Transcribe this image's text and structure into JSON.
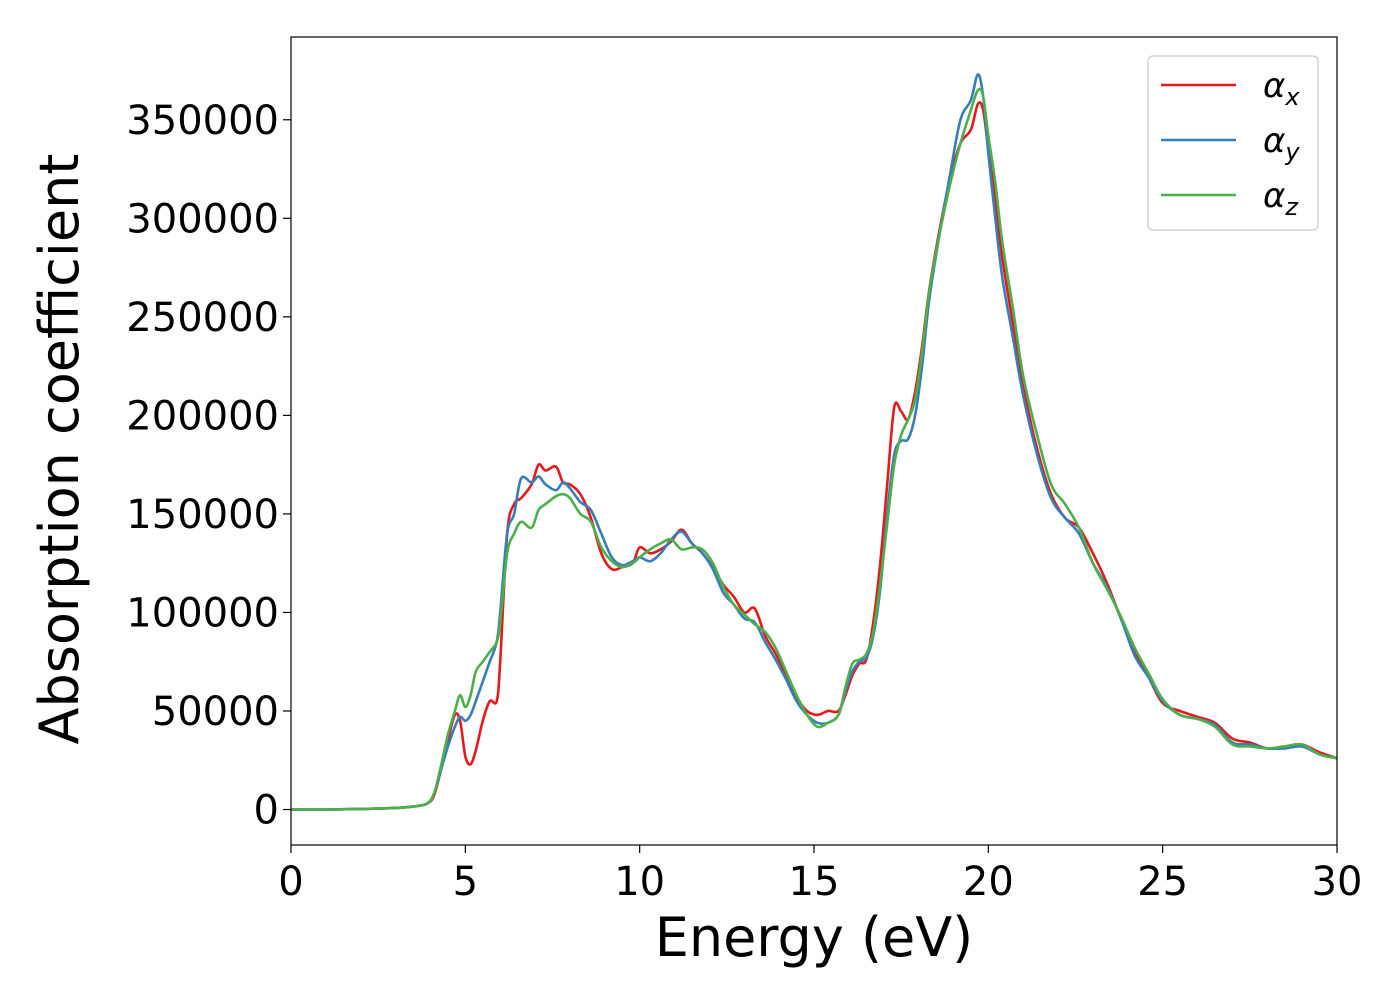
{
  "chart_data": {
    "type": "line",
    "xlabel": "Energy (eV)",
    "ylabel": "Absorption coefficient",
    "xlim": [
      0,
      30
    ],
    "ylim": [
      -18000,
      392000
    ],
    "x_ticks": [
      0,
      5,
      10,
      15,
      20,
      25,
      30
    ],
    "x_tick_labels": [
      "0",
      "5",
      "10",
      "15",
      "20",
      "25",
      "30"
    ],
    "y_ticks": [
      0,
      50000,
      100000,
      150000,
      200000,
      250000,
      300000,
      350000
    ],
    "y_tick_labels": [
      "0",
      "50000",
      "100000",
      "150000",
      "200000",
      "250000",
      "300000",
      "350000"
    ],
    "grid": false,
    "legend_position": "top-right",
    "series": [
      {
        "name": "αx",
        "label_base": "α",
        "label_sub": "x",
        "color": "#e41a1c",
        "x": [
          0,
          1,
          2,
          3,
          3.5,
          3.9,
          4.1,
          4.3,
          4.5,
          4.7,
          4.85,
          5.0,
          5.15,
          5.3,
          5.5,
          5.7,
          5.9,
          6.0,
          6.2,
          6.4,
          6.6,
          6.9,
          7.1,
          7.3,
          7.6,
          7.8,
          8.0,
          8.3,
          8.6,
          8.9,
          9.2,
          9.5,
          9.8,
          10.0,
          10.3,
          10.6,
          10.9,
          11.2,
          11.5,
          11.8,
          12.1,
          12.4,
          12.7,
          13.0,
          13.3,
          13.6,
          13.9,
          14.2,
          14.5,
          14.8,
          15.1,
          15.4,
          15.7,
          15.9,
          16.1,
          16.3,
          16.5,
          16.7,
          16.9,
          17.1,
          17.3,
          17.5,
          17.7,
          17.9,
          18.1,
          18.3,
          18.6,
          18.9,
          19.2,
          19.5,
          19.7,
          19.85,
          20.0,
          20.2,
          20.4,
          20.7,
          21.0,
          21.4,
          21.8,
          22.2,
          22.6,
          23.0,
          23.4,
          23.8,
          24.2,
          24.6,
          25.0,
          25.5,
          26.0,
          26.5,
          27.0,
          27.5,
          28.0,
          28.5,
          29.0,
          29.5,
          30.0
        ],
        "y": [
          0,
          0,
          300,
          800,
          1500,
          3000,
          7000,
          20000,
          35000,
          48000,
          45000,
          27000,
          23000,
          30000,
          45000,
          55000,
          55000,
          75000,
          140000,
          155000,
          158000,
          165000,
          175000,
          172000,
          174000,
          166000,
          165000,
          160000,
          148000,
          130000,
          122000,
          123000,
          125000,
          133000,
          130000,
          132000,
          136000,
          142000,
          135000,
          130000,
          123000,
          114000,
          108000,
          100000,
          102000,
          88000,
          79000,
          68000,
          57000,
          50000,
          48000,
          50000,
          50000,
          58000,
          68000,
          74000,
          76000,
          95000,
          125000,
          165000,
          204000,
          202000,
          198000,
          212000,
          235000,
          263000,
          294000,
          320000,
          338000,
          345000,
          358000,
          355000,
          335000,
          310000,
          280000,
          247000,
          215000,
          183000,
          160000,
          148000,
          143000,
          130000,
          115000,
          97000,
          80000,
          67000,
          54000,
          50000,
          47000,
          44000,
          36000,
          34000,
          31000,
          32000,
          33000,
          29000,
          26000
        ]
      },
      {
        "name": "αy",
        "label_base": "α",
        "label_sub": "y",
        "color": "#377eb8",
        "x": [
          0,
          1,
          2,
          3,
          3.5,
          3.9,
          4.1,
          4.3,
          4.5,
          4.7,
          4.85,
          5.0,
          5.15,
          5.3,
          5.5,
          5.7,
          5.9,
          6.0,
          6.2,
          6.4,
          6.6,
          6.9,
          7.1,
          7.3,
          7.6,
          7.8,
          8.0,
          8.3,
          8.6,
          8.9,
          9.2,
          9.5,
          9.8,
          10.0,
          10.3,
          10.6,
          10.9,
          11.2,
          11.5,
          11.8,
          12.1,
          12.4,
          12.7,
          13.0,
          13.3,
          13.6,
          13.9,
          14.2,
          14.5,
          14.8,
          15.1,
          15.4,
          15.7,
          15.9,
          16.1,
          16.3,
          16.5,
          16.7,
          16.9,
          17.1,
          17.3,
          17.5,
          17.7,
          17.9,
          18.1,
          18.3,
          18.6,
          18.9,
          19.2,
          19.5,
          19.7,
          19.85,
          20.0,
          20.2,
          20.4,
          20.7,
          21.0,
          21.4,
          21.8,
          22.2,
          22.6,
          23.0,
          23.4,
          23.8,
          24.2,
          24.6,
          25.0,
          25.5,
          26.0,
          26.5,
          27.0,
          27.5,
          28.0,
          28.5,
          29.0,
          29.5,
          30.0
        ],
        "y": [
          0,
          0,
          300,
          800,
          1500,
          3000,
          8000,
          20000,
          32000,
          42000,
          47000,
          45000,
          48000,
          55000,
          65000,
          75000,
          85000,
          100000,
          140000,
          150000,
          168000,
          166000,
          169000,
          165000,
          162000,
          166000,
          163000,
          156000,
          152000,
          140000,
          128000,
          124000,
          126000,
          128000,
          126000,
          130000,
          137000,
          141000,
          135000,
          130000,
          122000,
          110000,
          104000,
          97000,
          95000,
          85000,
          76000,
          66000,
          55000,
          48000,
          44000,
          44000,
          48000,
          60000,
          70000,
          75000,
          77000,
          88000,
          112000,
          150000,
          180000,
          187000,
          188000,
          200000,
          225000,
          258000,
          292000,
          322000,
          350000,
          360000,
          373000,
          362000,
          333000,
          300000,
          270000,
          240000,
          210000,
          180000,
          158000,
          148000,
          140000,
          125000,
          113000,
          97000,
          78000,
          67000,
          55000,
          48000,
          46000,
          43000,
          34000,
          33000,
          31000,
          31000,
          32000,
          28000,
          26000
        ]
      },
      {
        "name": "αz",
        "label_base": "α",
        "label_sub": "z",
        "color": "#4daf4a",
        "x": [
          0,
          1,
          2,
          3,
          3.5,
          3.9,
          4.1,
          4.3,
          4.5,
          4.7,
          4.85,
          5.0,
          5.15,
          5.3,
          5.5,
          5.7,
          5.9,
          6.0,
          6.2,
          6.4,
          6.6,
          6.9,
          7.1,
          7.3,
          7.6,
          7.8,
          8.0,
          8.3,
          8.6,
          8.9,
          9.2,
          9.5,
          9.8,
          10.0,
          10.3,
          10.6,
          10.9,
          11.2,
          11.5,
          11.8,
          12.1,
          12.4,
          12.7,
          13.0,
          13.3,
          13.6,
          13.9,
          14.2,
          14.5,
          14.8,
          15.1,
          15.4,
          15.7,
          15.9,
          16.1,
          16.3,
          16.5,
          16.7,
          16.9,
          17.1,
          17.3,
          17.5,
          17.7,
          17.9,
          18.1,
          18.3,
          18.6,
          18.9,
          19.2,
          19.5,
          19.7,
          19.85,
          20.0,
          20.2,
          20.4,
          20.7,
          21.0,
          21.4,
          21.8,
          22.2,
          22.6,
          23.0,
          23.4,
          23.8,
          24.2,
          24.6,
          25.0,
          25.5,
          26.0,
          26.5,
          27.0,
          27.5,
          28.0,
          28.5,
          29.0,
          29.5,
          30.0
        ],
        "y": [
          0,
          0,
          300,
          800,
          1500,
          3000,
          8000,
          22000,
          38000,
          50000,
          58000,
          52000,
          58000,
          70000,
          75000,
          80000,
          85000,
          95000,
          130000,
          140000,
          146000,
          143000,
          152000,
          155000,
          159000,
          160000,
          158000,
          150000,
          146000,
          133000,
          126000,
          123000,
          125000,
          128000,
          132000,
          135000,
          137000,
          132000,
          133000,
          132000,
          125000,
          113000,
          104000,
          99000,
          94000,
          90000,
          82000,
          70000,
          58000,
          48000,
          42000,
          44000,
          48000,
          62000,
          74000,
          76000,
          79000,
          90000,
          115000,
          145000,
          175000,
          190000,
          198000,
          208000,
          232000,
          262000,
          292000,
          317000,
          338000,
          355000,
          365000,
          362000,
          342000,
          318000,
          288000,
          255000,
          220000,
          190000,
          165000,
          155000,
          143000,
          125000,
          112000,
          98000,
          82000,
          69000,
          56000,
          48000,
          46000,
          42000,
          33000,
          32000,
          31000,
          32000,
          33000,
          28000,
          26000
        ]
      }
    ]
  }
}
